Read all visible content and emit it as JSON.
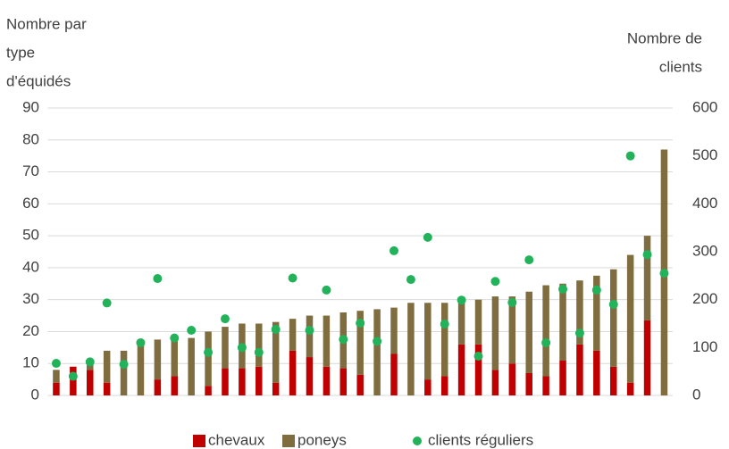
{
  "chart_data": {
    "type": "bar",
    "stacked": true,
    "y_label": [
      "Nombre par",
      "type",
      "d'équidés"
    ],
    "y2_label": [
      "Nombre de",
      "clients"
    ],
    "categories": [
      null,
      null,
      null,
      null,
      null,
      null,
      null,
      null,
      null,
      null,
      null,
      null,
      null,
      null,
      null,
      null,
      null,
      null,
      null,
      null,
      null,
      null,
      null,
      null,
      null,
      null,
      null,
      null,
      null,
      null,
      null,
      null,
      null,
      null,
      null,
      null,
      null
    ],
    "series": [
      {
        "name": "chevaux",
        "type": "bar",
        "color": "#c00000",
        "values": [
          4,
          9,
          8,
          4,
          0,
          0,
          5,
          6,
          0,
          3,
          8.5,
          8.5,
          9,
          4,
          14,
          12,
          9,
          8.5,
          6.5,
          0,
          13,
          0,
          5,
          6,
          16,
          16,
          8,
          10,
          7,
          6,
          11,
          16,
          14,
          9,
          4,
          23.5,
          0
        ]
      },
      {
        "name": "poneys",
        "type": "bar",
        "color": "#7f6d3f",
        "values": [
          4,
          0,
          2,
          10,
          14,
          17,
          12.5,
          12,
          18,
          17,
          13,
          14,
          13.5,
          19,
          10,
          13,
          16,
          17.5,
          20,
          27,
          14.5,
          29,
          24,
          23,
          13.5,
          14,
          23,
          21,
          25.5,
          28.5,
          24,
          20,
          23.5,
          30.5,
          40,
          26.5,
          77
        ]
      },
      {
        "name": "clients réguliers",
        "type": "scatter",
        "axis": "y2",
        "color": "#22b35a",
        "values": [
          67,
          40,
          70,
          193,
          65,
          110,
          244,
          120,
          136,
          90,
          160,
          100,
          90,
          138,
          245,
          136,
          220,
          117,
          151,
          113,
          302,
          242,
          330,
          149,
          199,
          82,
          238,
          194,
          283,
          110,
          222,
          130,
          220,
          190,
          500,
          294,
          255
        ]
      }
    ],
    "ylim": [
      0,
      90
    ],
    "yticks": [
      0,
      10,
      20,
      30,
      40,
      50,
      60,
      70,
      80,
      90
    ],
    "y2lim": [
      0,
      600
    ],
    "y2ticks": [
      0,
      100,
      200,
      300,
      400,
      500,
      600
    ],
    "grid": true,
    "legend": "bottom"
  }
}
